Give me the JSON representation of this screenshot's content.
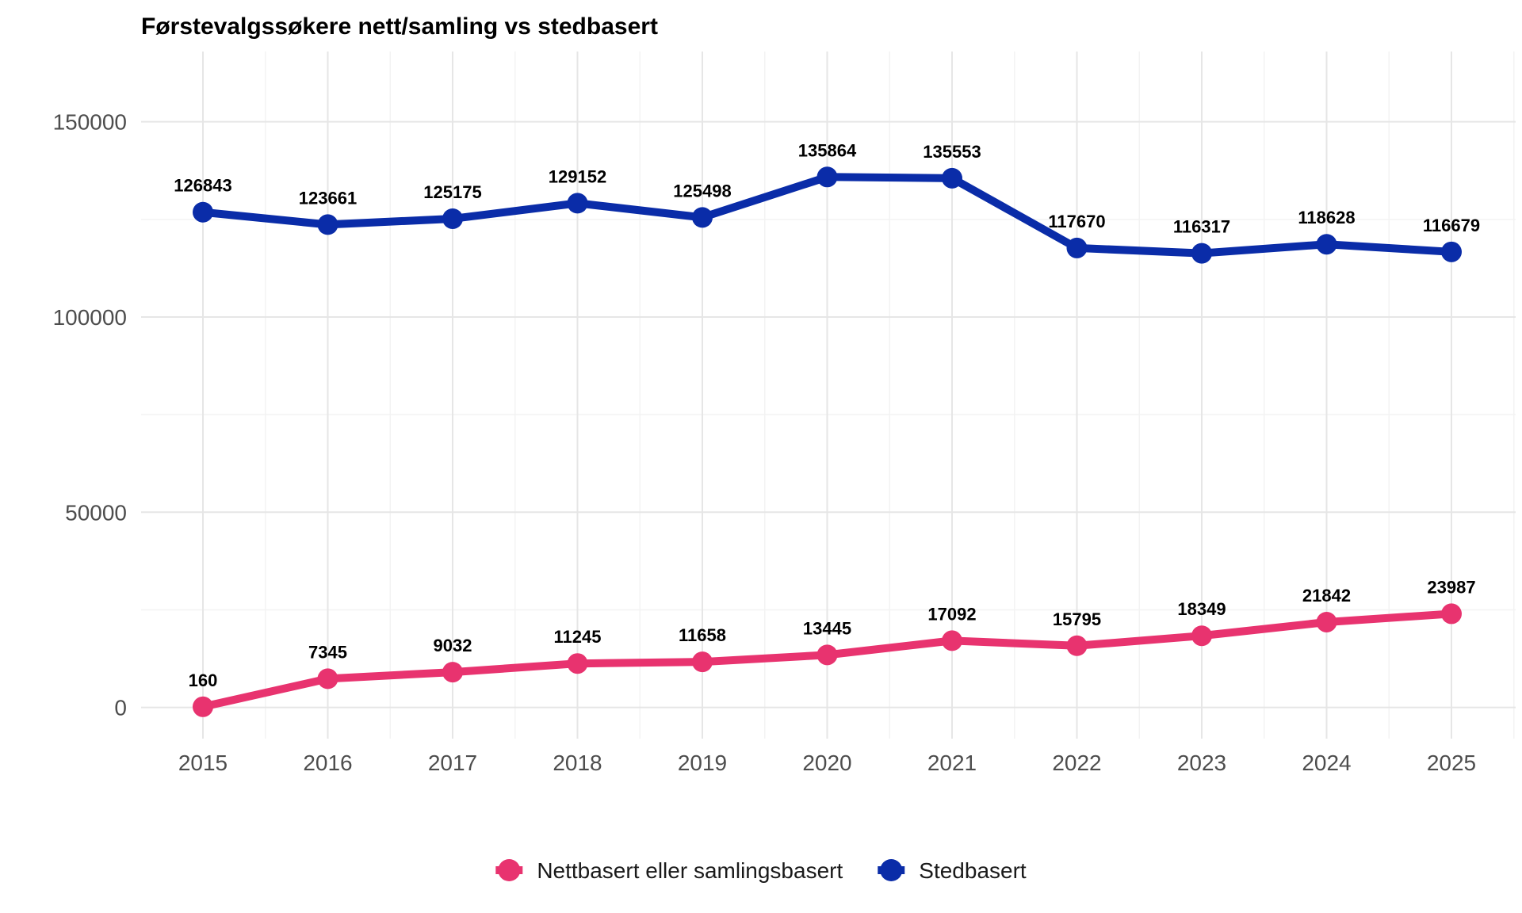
{
  "chart_data": {
    "type": "line",
    "title": "Førstevalgssøkere nett/samling vs stedbasert",
    "xlabel": "",
    "ylabel": "",
    "x": [
      "2015",
      "2016",
      "2017",
      "2018",
      "2019",
      "2020",
      "2021",
      "2022",
      "2023",
      "2024",
      "2025"
    ],
    "y_ticks": [
      "0",
      "50000",
      "100000",
      "150000"
    ],
    "ylim": [
      -8000,
      168000
    ],
    "grid": true,
    "legend_position": "bottom",
    "series": [
      {
        "name": "Nettbasert eller samlingsbasert",
        "color": "#e8336f",
        "values": [
          160,
          7345,
          9032,
          11245,
          11658,
          13445,
          17092,
          15795,
          18349,
          21842,
          23987
        ],
        "labels": [
          "160",
          "7345",
          "9032",
          "11245",
          "11658",
          "13445",
          "17092",
          "15795",
          "18349",
          "21842",
          "23987"
        ]
      },
      {
        "name": "Stedbasert",
        "color": "#0a2ca8",
        "values": [
          126843,
          123661,
          125175,
          129152,
          125498,
          135864,
          135553,
          117670,
          116317,
          118628,
          116679
        ],
        "labels": [
          "126843",
          "123661",
          "125175",
          "129152",
          "125498",
          "135864",
          "135553",
          "117670",
          "116317",
          "118628",
          "116679"
        ]
      }
    ]
  }
}
